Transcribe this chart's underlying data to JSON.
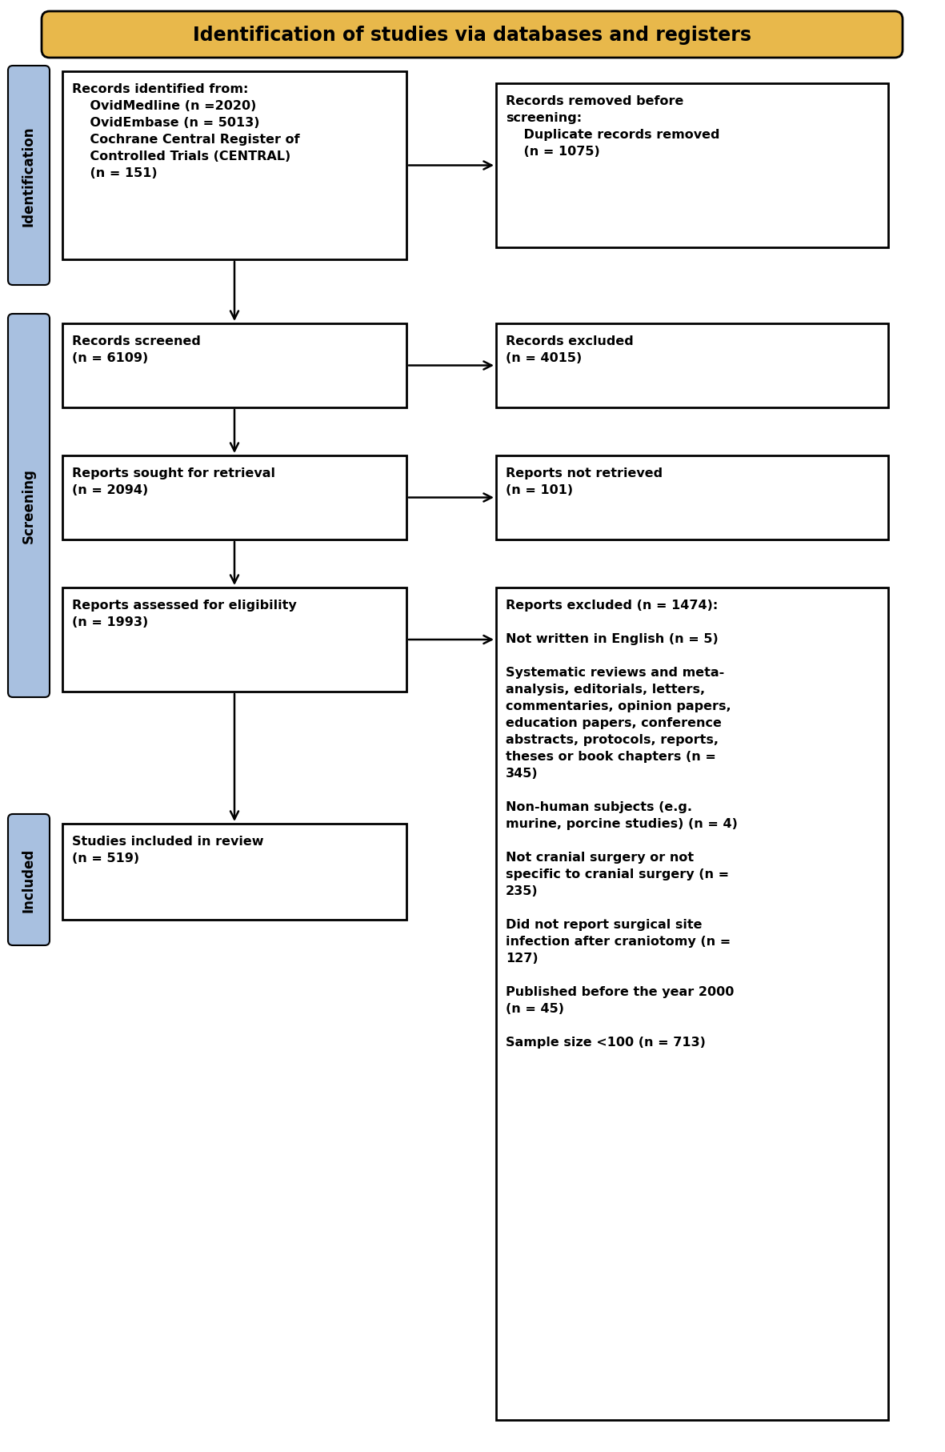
{
  "title": "Identification of studies via databases and registers",
  "title_bg": "#E8B84B",
  "sidebar_color": "#A8C0E0",
  "box_text": {
    "box1": "Records identified from:\n    OvidMedline (n =2020)\n    OvidEmbase (n = 5013)\n    Cochrane Central Register of\n    Controlled Trials (CENTRAL)\n    (n = 151)",
    "box2": "Records screened\n(n = 6109)",
    "box3": "Reports sought for retrieval\n(n = 2094)",
    "box4": "Reports assessed for eligibility\n(n = 1993)",
    "box5": "Studies included in review\n(n = 519)",
    "boxR1": "Records removed before\nscreening:\n    Duplicate records removed\n    (n = 1075)",
    "boxR2": "Records excluded\n(n = 4015)",
    "boxR3": "Reports not retrieved\n(n = 101)",
    "boxR4": "Reports excluded (n = 1474):\n\nNot written in English (n = 5)\n\nSystematic reviews and meta-\nanalysis, editorials, letters,\ncommentaries, opinion papers,\neducation papers, conference\nabstracts, protocols, reports,\ntheses or book chapters (n =\n345)\n\nNon-human subjects (e.g.\nmurine, porcine studies) (n = 4)\n\nNot cranial surgery or not\nspecific to cranial surgery (n =\n235)\n\nDid not report surgical site\ninfection after craniotomy (n =\n127)\n\nPublished before the year 2000\n(n = 45)\n\nSample size <100 (n = 713)"
  },
  "sidebar_labels": [
    "Identification",
    "Screening",
    "Included"
  ]
}
